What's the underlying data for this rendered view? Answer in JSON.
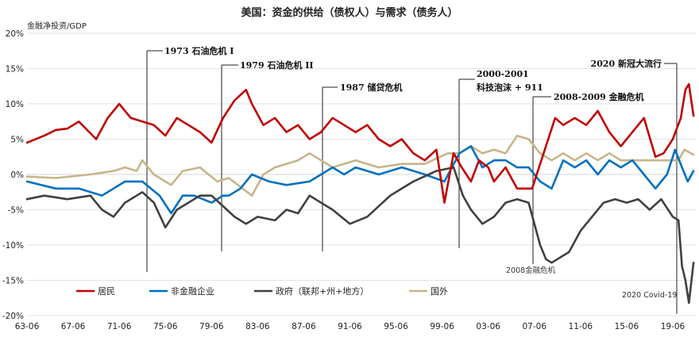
{
  "chart_data": {
    "type": "line",
    "title": "美国：资金的供给（债权人）与需求（债务人）",
    "ylabel": "金融净投资/GDP",
    "ylim": [
      -20,
      20
    ],
    "y_ticks": [
      "20%",
      "15%",
      "10%",
      "5%",
      "0%",
      "-5%",
      "-10%",
      "-15%",
      "-20%"
    ],
    "y_tick_values": [
      20,
      15,
      10,
      5,
      0,
      -5,
      -10,
      -15,
      -20
    ],
    "x_range": [
      1963.5,
      2021.5
    ],
    "x_ticks": [
      "63-06",
      "67-06",
      "71-06",
      "75-06",
      "79-06",
      "83-06",
      "87-06",
      "91-06",
      "95-06",
      "99-06",
      "03-06",
      "07-06",
      "11-06",
      "15-06",
      "19-06"
    ],
    "x_tick_values": [
      1963.5,
      1967.5,
      1971.5,
      1975.5,
      1979.5,
      1983.5,
      1987.5,
      1991.5,
      1995.5,
      1999.5,
      2003.5,
      2007.5,
      2011.5,
      2015.5,
      2019.5
    ],
    "series": [
      {
        "name": "居民",
        "color": "#c00000",
        "x": [
          1963.5,
          1965,
          1966,
          1967,
          1968,
          1969.5,
          1970.5,
          1971.5,
          1972.5,
          1973.5,
          1974.5,
          1975.5,
          1976.5,
          1977.5,
          1978.5,
          1979.5,
          1980.5,
          1981.5,
          1982.5,
          1983,
          1984,
          1985,
          1986,
          1987,
          1988,
          1989,
          1990,
          1991,
          1992,
          1993,
          1994,
          1995,
          1996,
          1997,
          1998,
          1999,
          1999.7,
          2000.5,
          2001.2,
          2002,
          2002.7,
          2003.5,
          2004,
          2005,
          2006,
          2007.3,
          2008.5,
          2009.3,
          2010,
          2011,
          2012,
          2013,
          2014,
          2015,
          2016,
          2017,
          2018,
          2018.7,
          2019.5,
          2020.2,
          2020.6,
          2020.9,
          2021.3
        ],
        "values": [
          4.5,
          5.5,
          6.3,
          6.5,
          7.5,
          5,
          8,
          10,
          8,
          7.5,
          7,
          5.5,
          8,
          7,
          6,
          4.5,
          8,
          10.5,
          12,
          10,
          7,
          8,
          6,
          7,
          5,
          6,
          8,
          7,
          6,
          7,
          5,
          4,
          5,
          3,
          2,
          3.5,
          -4,
          3,
          1,
          -1,
          2,
          1,
          -1,
          1,
          -2,
          -2,
          4,
          8,
          7,
          8,
          7,
          9,
          6,
          4,
          6,
          8,
          2.5,
          3,
          5,
          8,
          12,
          12.8,
          8.3
        ]
      },
      {
        "name": "非金融企业",
        "color": "#0070c0",
        "x": [
          1963.5,
          1966,
          1968,
          1970,
          1972,
          1973.5,
          1975,
          1976,
          1977,
          1978,
          1979.5,
          1980.5,
          1981,
          1982,
          1983,
          1984.5,
          1986,
          1988,
          1990,
          1991,
          1992,
          1994,
          1996,
          1998,
          1999.7,
          2001,
          2002,
          2003,
          2004,
          2005,
          2006,
          2007,
          2008,
          2009,
          2010,
          2011,
          2012,
          2013,
          2014,
          2015,
          2016,
          2017,
          2018,
          2019,
          2019.7,
          2020.3,
          2020.8,
          2021.3
        ],
        "values": [
          -1,
          -2,
          -2,
          -3,
          -1,
          -1,
          -3,
          -5.5,
          -3,
          -3,
          -4,
          -3,
          -3,
          -2,
          0,
          -1,
          -1.5,
          -1,
          1,
          0,
          1,
          0,
          1,
          0,
          -1,
          3,
          4,
          1,
          2,
          2,
          1,
          1,
          -1,
          -2,
          2,
          1,
          2,
          0,
          2,
          1,
          2,
          0,
          -2,
          0,
          3.5,
          1,
          -1,
          0.5
        ]
      },
      {
        "name": "政府（联邦+州+地方）",
        "color": "#404040",
        "x": [
          1963.5,
          1965,
          1967,
          1969,
          1970,
          1971,
          1972,
          1973.5,
          1974.5,
          1975.5,
          1976.5,
          1977.5,
          1978.5,
          1979.5,
          1980.5,
          1981.5,
          1982.5,
          1983.5,
          1985,
          1986,
          1987,
          1988,
          1989,
          1990,
          1991.5,
          1993,
          1995,
          1997,
          1999,
          2000.5,
          2001.3,
          2002,
          2003,
          2004,
          2005,
          2006,
          2007,
          2008,
          2008.5,
          2009,
          2009.5,
          2010.5,
          2011.5,
          2012.5,
          2013.5,
          2014.5,
          2015.5,
          2016.5,
          2017.5,
          2018.5,
          2019.5,
          2020,
          2020.3,
          2020.6,
          2020.9,
          2021.3
        ],
        "values": [
          -3.5,
          -3,
          -3.5,
          -3,
          -5,
          -6,
          -4,
          -2.5,
          -4,
          -7.5,
          -5,
          -4,
          -3,
          -3,
          -4.5,
          -6,
          -7,
          -6,
          -6.5,
          -5,
          -5.5,
          -3,
          -4,
          -5,
          -7,
          -6,
          -3,
          -1,
          0.5,
          1,
          -3,
          -5,
          -7,
          -6,
          -4,
          -3.5,
          -4,
          -10,
          -12,
          -12.5,
          -12,
          -11,
          -8,
          -6,
          -4,
          -3.5,
          -4,
          -3.5,
          -5,
          -3.5,
          -6,
          -6.5,
          -13,
          -15,
          -18.2,
          -12.5
        ]
      },
      {
        "name": "国外",
        "color": "#c8b48a",
        "x": [
          1963.5,
          1966,
          1969,
          1971,
          1972,
          1973,
          1973.5,
          1974.5,
          1976,
          1977,
          1978.5,
          1980,
          1981,
          1983,
          1984,
          1985,
          1987,
          1988,
          1990,
          1992,
          1994,
          1996,
          1998,
          2000,
          2001,
          2002,
          2003,
          2004,
          2005,
          2006,
          2007,
          2008,
          2009,
          2010,
          2011,
          2012,
          2013,
          2014,
          2015,
          2016,
          2017,
          2018,
          2019,
          2020,
          2020.5,
          2021.3
        ],
        "values": [
          -0.3,
          -0.5,
          0,
          0.5,
          1,
          0.5,
          2,
          0,
          -1.5,
          0.5,
          1,
          -1,
          -0.5,
          -3,
          0,
          1,
          2,
          3,
          1,
          2,
          1,
          1.5,
          1.5,
          3,
          3,
          4,
          3,
          3.5,
          3,
          5.5,
          5,
          3,
          2,
          3,
          2,
          3,
          2,
          3,
          2,
          2,
          2,
          2,
          2,
          2,
          3.5,
          2.8
        ]
      }
    ],
    "legend": [
      "居民",
      "非金融企业",
      "政府（联邦+州+地方）",
      "国外"
    ],
    "annotations": [
      {
        "text": "1973 石油危机 I",
        "x": 1973.7
      },
      {
        "text": "1979 石油危机 II",
        "x": 1980.1
      },
      {
        "text": "1987 储贷危机",
        "x": 1990.6
      },
      {
        "text": "2000-2001",
        "x": 2001.3
      },
      {
        "text": "科技泡沫 + 911",
        "x": 2001.3
      },
      {
        "text": "2008-2009 金融危机",
        "x": 2008.5
      },
      {
        "text": "2020 新冠大流行",
        "x": 2020.5
      }
    ],
    "notes": [
      "2008金融危机",
      "2020 Covid-19"
    ]
  }
}
